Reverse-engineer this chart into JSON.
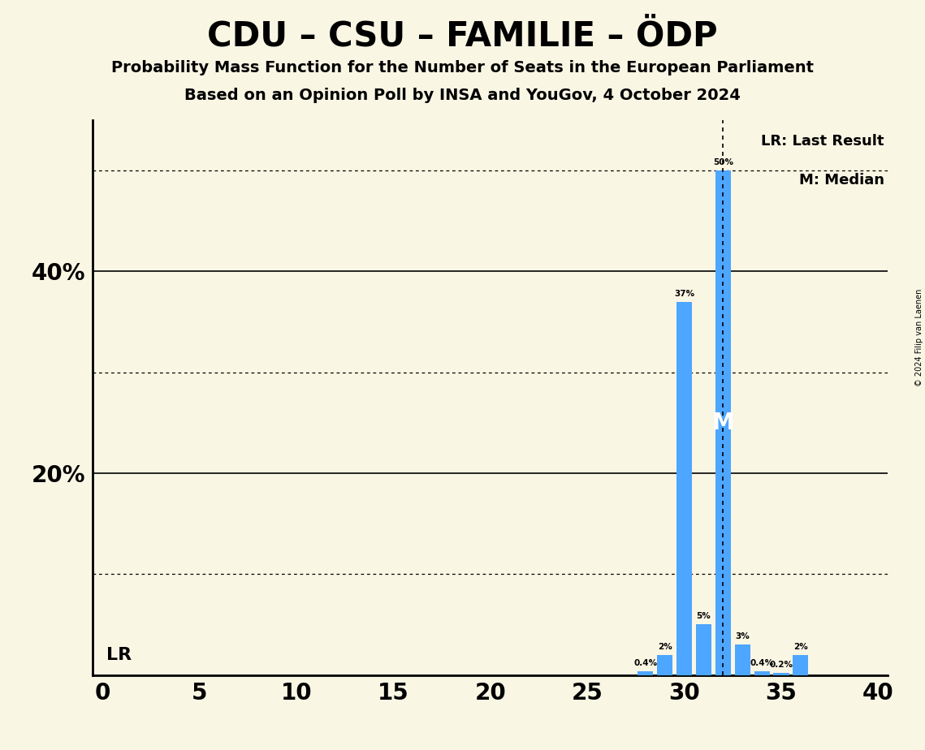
{
  "title": "CDU – CSU – FAMILIE – ÖDP",
  "subtitle1": "Probability Mass Function for the Number of Seats in the European Parliament",
  "subtitle2": "Based on an Opinion Poll by INSA and YouGov, 4 October 2024",
  "copyright": "© 2024 Filip van Laenen",
  "bar_color": "#4da6ff",
  "background_color": "#faf6e4",
  "x_min": 0,
  "x_max": 40,
  "y_min": 0,
  "y_max": 55,
  "seats": [
    0,
    1,
    2,
    3,
    4,
    5,
    6,
    7,
    8,
    9,
    10,
    11,
    12,
    13,
    14,
    15,
    16,
    17,
    18,
    19,
    20,
    21,
    22,
    23,
    24,
    25,
    26,
    27,
    28,
    29,
    30,
    31,
    32,
    33,
    34,
    35,
    36,
    37,
    38,
    39,
    40
  ],
  "probabilities": [
    0,
    0,
    0,
    0,
    0,
    0,
    0,
    0,
    0,
    0,
    0,
    0,
    0,
    0,
    0,
    0,
    0,
    0,
    0,
    0,
    0,
    0,
    0,
    0,
    0,
    0,
    0,
    0,
    0.4,
    2,
    37,
    5,
    50,
    3,
    0.4,
    0.2,
    2,
    0,
    0,
    0,
    0
  ],
  "last_result": 32,
  "median": 32,
  "lr_label": "LR: Last Result",
  "median_label": "M: Median",
  "lr_text": "LR",
  "median_text": "M",
  "solid_gridlines": [
    0,
    20,
    40
  ],
  "dotted_gridlines": [
    10,
    30,
    50
  ],
  "bar_width": 0.8,
  "label_fontsize": 7.5,
  "tick_fontsize": 20,
  "ytick_positions": [
    20,
    40
  ],
  "ytick_labels": [
    "20%",
    "40%"
  ]
}
